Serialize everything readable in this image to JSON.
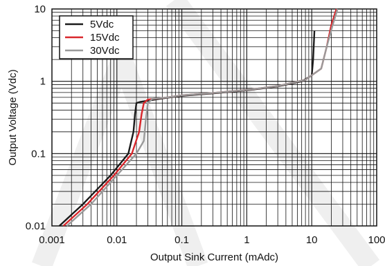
{
  "chart_data": {
    "type": "line",
    "title": "",
    "xlabel": "Output Sink Current (mAdc)",
    "ylabel": "Output Voltage (Vdc)",
    "x_scale": "log",
    "y_scale": "log",
    "xlim": [
      0.001,
      100
    ],
    "ylim": [
      0.01,
      10
    ],
    "x_tick_labels": [
      "0.001",
      "0.01",
      "0.1",
      "1",
      "10",
      "100"
    ],
    "y_tick_labels": [
      "0.01",
      "0.1",
      "1",
      "10"
    ],
    "grid": true,
    "legend_position": "top-left",
    "watermark_color": "#1a1a1a",
    "series": [
      {
        "name": "5Vdc",
        "color": "#1a1a1a",
        "points": [
          [
            0.0013,
            0.01
          ],
          [
            0.003,
            0.02
          ],
          [
            0.008,
            0.05
          ],
          [
            0.015,
            0.1
          ],
          [
            0.018,
            0.2
          ],
          [
            0.019,
            0.35
          ],
          [
            0.02,
            0.5
          ],
          [
            0.023,
            0.52
          ],
          [
            0.05,
            0.58
          ],
          [
            0.1,
            0.63
          ],
          [
            0.3,
            0.68
          ],
          [
            1,
            0.75
          ],
          [
            3,
            0.85
          ],
          [
            7,
            1.0
          ],
          [
            10,
            1.2
          ],
          [
            10.5,
            2.0
          ],
          [
            11,
            5.0
          ]
        ]
      },
      {
        "name": "15Vdc",
        "color": "#d9262b",
        "points": [
          [
            0.0015,
            0.01
          ],
          [
            0.0035,
            0.02
          ],
          [
            0.009,
            0.05
          ],
          [
            0.017,
            0.1
          ],
          [
            0.022,
            0.2
          ],
          [
            0.024,
            0.35
          ],
          [
            0.026,
            0.5
          ],
          [
            0.03,
            0.56
          ],
          [
            0.06,
            0.6
          ],
          [
            0.1,
            0.64
          ],
          [
            0.3,
            0.69
          ],
          [
            1,
            0.76
          ],
          [
            3,
            0.86
          ],
          [
            8,
            1.05
          ],
          [
            14,
            1.5
          ],
          [
            17,
            3.0
          ],
          [
            20,
            6.0
          ],
          [
            24,
            10.0
          ]
        ]
      },
      {
        "name": "30Vdc",
        "color": "#9a9a9a",
        "points": [
          [
            0.0017,
            0.01
          ],
          [
            0.004,
            0.02
          ],
          [
            0.01,
            0.05
          ],
          [
            0.02,
            0.1
          ],
          [
            0.026,
            0.15
          ],
          [
            0.028,
            0.3
          ],
          [
            0.03,
            0.5
          ],
          [
            0.035,
            0.57
          ],
          [
            0.06,
            0.6
          ],
          [
            0.1,
            0.64
          ],
          [
            0.3,
            0.69
          ],
          [
            1,
            0.76
          ],
          [
            3,
            0.86
          ],
          [
            8,
            1.05
          ],
          [
            14,
            1.5
          ],
          [
            17,
            3.0
          ],
          [
            21,
            6.0
          ],
          [
            25,
            10.0
          ]
        ]
      }
    ]
  }
}
